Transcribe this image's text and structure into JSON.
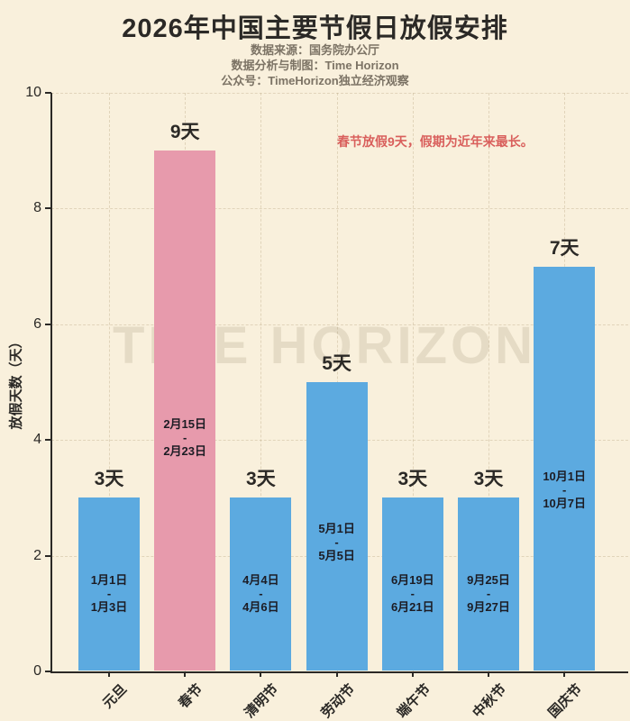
{
  "title": "2026年中国主要节假日放假安排",
  "subtitle": [
    "数据来源：国务院办公厅",
    "数据分析与制图：Time Horizon",
    "公众号：TimeHorizon独立经济观察"
  ],
  "annotation": "春节放假9天，假期为近年来最长。",
  "watermark": "TIME HORIZON",
  "colors": {
    "background": "#F9F0DC",
    "bar_blue": "#5CAAE0",
    "bar_pink": "#E79AAC",
    "annotation_red": "#D95F5C",
    "title_text": "#2B2926",
    "subtitle_text": "#7C7365",
    "bar_date_text": "#1C1C24"
  },
  "chart_data": {
    "type": "bar",
    "title": "2026年中国主要节假日放假安排",
    "categories": [
      "元旦",
      "春节",
      "清明节",
      "劳动节",
      "端午节",
      "中秋节",
      "国庆节"
    ],
    "values": [
      3,
      9,
      3,
      5,
      3,
      3,
      7
    ],
    "value_labels": [
      "3天",
      "9天",
      "3天",
      "5天",
      "3天",
      "3天",
      "7天"
    ],
    "bar_date_ranges": [
      [
        "1月1日",
        "-",
        "1月3日"
      ],
      [
        "2月15日",
        "-",
        "2月23日"
      ],
      [
        "4月4日",
        "-",
        "4月6日"
      ],
      [
        "5月1日",
        "-",
        "5月5日"
      ],
      [
        "6月19日",
        "-",
        "6月21日"
      ],
      [
        "9月25日",
        "-",
        "9月27日"
      ],
      [
        "10月1日",
        "-",
        "10月7日"
      ]
    ],
    "highlight_index": 1,
    "xlabel": "",
    "ylabel": "放假天数（天）",
    "ylim": [
      0,
      10
    ],
    "yticks": [
      0,
      2,
      4,
      6,
      8,
      10
    ],
    "grid": true,
    "legend": "none"
  }
}
